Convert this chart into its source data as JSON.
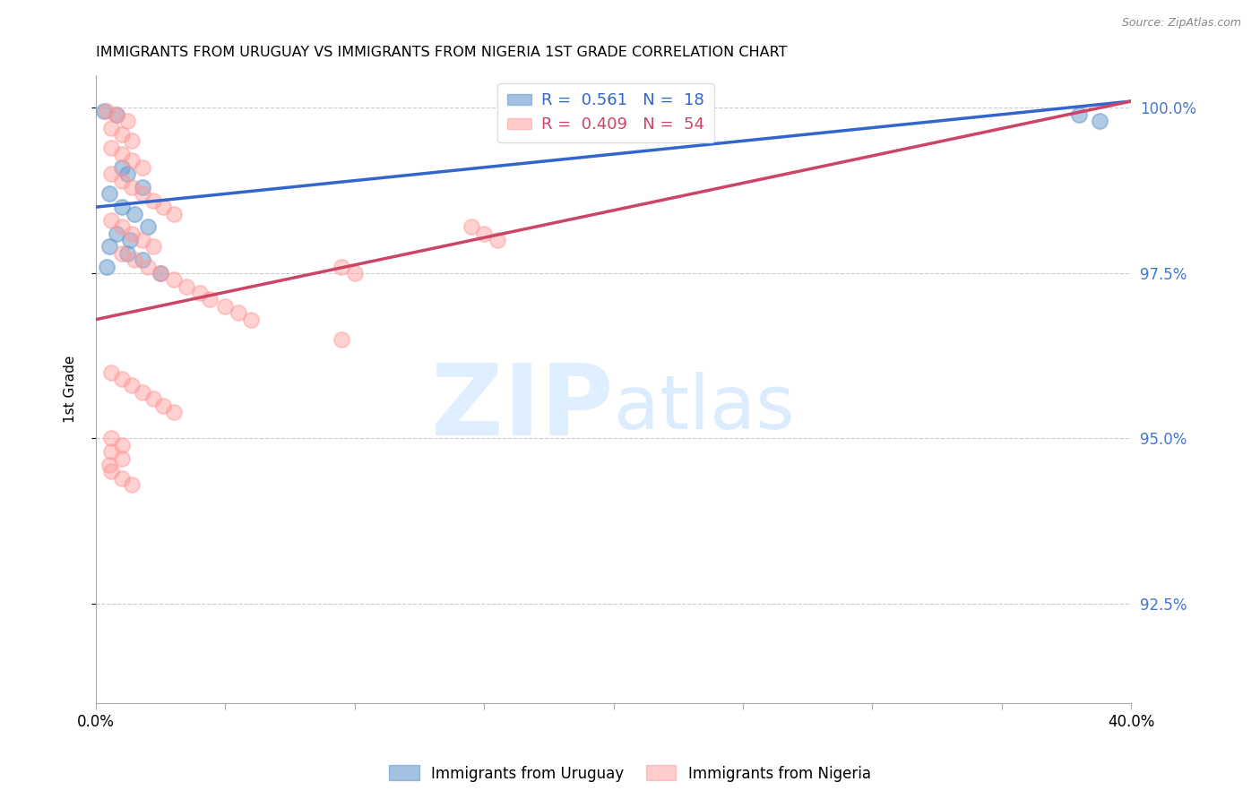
{
  "title": "IMMIGRANTS FROM URUGUAY VS IMMIGRANTS FROM NIGERIA 1ST GRADE CORRELATION CHART",
  "source": "Source: ZipAtlas.com",
  "ylabel": "1st Grade",
  "r_uruguay": 0.561,
  "n_uruguay": 18,
  "r_nigeria": 0.409,
  "n_nigeria": 54,
  "xlim": [
    0.0,
    0.4
  ],
  "ylim": [
    0.91,
    1.005
  ],
  "yticks": [
    0.925,
    0.95,
    0.975,
    1.0
  ],
  "ytick_labels": [
    "92.5%",
    "95.0%",
    "97.5%",
    "100.0%"
  ],
  "xticks": [
    0.0,
    0.05,
    0.1,
    0.15,
    0.2,
    0.25,
    0.3,
    0.35,
    0.4
  ],
  "color_uruguay": "#6699cc",
  "color_nigeria": "#ff9999",
  "color_trendline_uruguay": "#3366cc",
  "color_trendline_nigeria": "#cc4466",
  "uruguay_x": [
    0.003,
    0.008,
    0.01,
    0.012,
    0.018,
    0.005,
    0.01,
    0.015,
    0.02,
    0.008,
    0.013,
    0.005,
    0.012,
    0.018,
    0.025,
    0.38,
    0.388,
    0.004
  ],
  "uruguay_y": [
    0.9995,
    0.999,
    0.991,
    0.99,
    0.988,
    0.987,
    0.985,
    0.984,
    0.982,
    0.981,
    0.98,
    0.979,
    0.978,
    0.977,
    0.975,
    0.999,
    0.998,
    0.976
  ],
  "nigeria_x": [
    0.004,
    0.008,
    0.012,
    0.006,
    0.01,
    0.014,
    0.006,
    0.01,
    0.014,
    0.018,
    0.006,
    0.01,
    0.014,
    0.018,
    0.022,
    0.026,
    0.03,
    0.006,
    0.01,
    0.014,
    0.018,
    0.022,
    0.01,
    0.015,
    0.02,
    0.025,
    0.03,
    0.035,
    0.04,
    0.044,
    0.05,
    0.055,
    0.06,
    0.095,
    0.1,
    0.145,
    0.15,
    0.155,
    0.095,
    0.006,
    0.01,
    0.014,
    0.018,
    0.022,
    0.026,
    0.03,
    0.006,
    0.01,
    0.006,
    0.01,
    0.005,
    0.006,
    0.01,
    0.014
  ],
  "nigeria_y": [
    0.9995,
    0.999,
    0.998,
    0.997,
    0.996,
    0.995,
    0.994,
    0.993,
    0.992,
    0.991,
    0.99,
    0.989,
    0.988,
    0.987,
    0.986,
    0.985,
    0.984,
    0.983,
    0.982,
    0.981,
    0.98,
    0.979,
    0.978,
    0.977,
    0.976,
    0.975,
    0.974,
    0.973,
    0.972,
    0.971,
    0.97,
    0.969,
    0.968,
    0.976,
    0.975,
    0.982,
    0.981,
    0.98,
    0.965,
    0.96,
    0.959,
    0.958,
    0.957,
    0.956,
    0.955,
    0.954,
    0.95,
    0.949,
    0.948,
    0.947,
    0.946,
    0.945,
    0.944,
    0.943
  ]
}
